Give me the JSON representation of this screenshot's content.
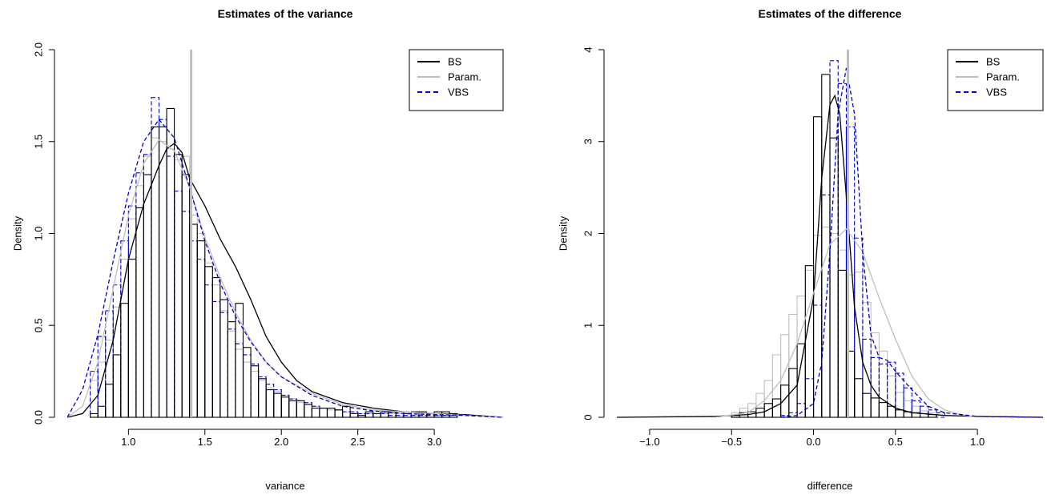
{
  "chart_data": [
    {
      "type": "histogram",
      "title": "Estimates of the variance",
      "xlabel": "variance",
      "ylabel": "Density",
      "xlim": [
        0.6,
        3.45
      ],
      "ylim": [
        0,
        2.0
      ],
      "xticks": [
        1.0,
        1.5,
        2.0,
        2.5,
        3.0
      ],
      "xtick_labels": [
        "1.0",
        "1.5",
        "2.0",
        "2.5",
        "3.0"
      ],
      "yticks": [
        0.0,
        0.5,
        1.0,
        1.5,
        2.0
      ],
      "ytick_labels": [
        "0.0",
        "0.5",
        "1.0",
        "1.5",
        "2.0"
      ],
      "vline": 1.41,
      "vline_color": "#bebebe",
      "legend_position": "top-right",
      "legend": [
        {
          "label": "BS",
          "color": "#000000",
          "dash": "solid"
        },
        {
          "label": "Param.",
          "color": "#bebebe",
          "dash": "solid"
        },
        {
          "label": "VBS",
          "color": "#0000cd",
          "dash": "dashed"
        }
      ],
      "histograms": [
        {
          "name": "BS",
          "color": "#000000",
          "dash": "solid",
          "x0": 0.75,
          "binwidth": 0.05,
          "values": [
            0.02,
            0.06,
            0.18,
            0.34,
            0.62,
            0.86,
            1.14,
            1.32,
            1.58,
            1.58,
            1.68,
            1.43,
            1.32,
            1.05,
            0.96,
            0.82,
            0.76,
            0.64,
            0.52,
            0.62,
            0.38,
            0.28,
            0.21,
            0.15,
            0.13,
            0.11,
            0.09,
            0.09,
            0.07,
            0.05,
            0.05,
            0.05,
            0.04,
            0.06,
            0.02,
            0.01,
            0.03,
            0.02,
            0.03,
            0.03,
            0.03,
            0.02,
            0.03,
            0.03,
            0.02,
            0.03,
            0.03,
            0.02
          ]
        },
        {
          "name": "Param.",
          "color": "#bebebe",
          "dash": "solid",
          "x0": 0.75,
          "binwidth": 0.05,
          "values": [
            0.2,
            0.3,
            0.42,
            0.6,
            0.86,
            1.08,
            1.26,
            1.42,
            1.52,
            1.5,
            1.46,
            1.4,
            1.42,
            1.1,
            1.0,
            0.84,
            0.72,
            0.58,
            0.47,
            0.37,
            0.3,
            0.25,
            0.2,
            0.16,
            0.14,
            0.12,
            0.1,
            0.08,
            0.07,
            0.06,
            0.05,
            0.04,
            0.04,
            0.03,
            0.03,
            0.02,
            0.02,
            0.02,
            0.02,
            0.02,
            0.02,
            0.02,
            0.01,
            0.01,
            0.02,
            0.01,
            0.02,
            0.01
          ]
        },
        {
          "name": "VBS",
          "color": "#0000cd",
          "dash": "dashed",
          "x0": 0.75,
          "binwidth": 0.05,
          "values": [
            0.25,
            0.44,
            0.58,
            0.72,
            0.96,
            1.15,
            1.33,
            1.43,
            1.74,
            1.62,
            1.42,
            1.23,
            1.12,
            0.96,
            0.86,
            0.72,
            0.63,
            0.57,
            0.48,
            0.4,
            0.34,
            0.29,
            0.22,
            0.18,
            0.15,
            0.12,
            0.1,
            0.09,
            0.08,
            0.06,
            0.05,
            0.05,
            0.04,
            0.03,
            0.03,
            0.02,
            0.02,
            0.02,
            0.02,
            0.01,
            0.01,
            0.01,
            0.01,
            0.01,
            0.01,
            0.01,
            0.01,
            0.01
          ]
        }
      ],
      "densities": [
        {
          "name": "BS",
          "color": "#000000",
          "dash": "solid",
          "x": [
            0.6,
            0.7,
            0.8,
            0.9,
            1.0,
            1.1,
            1.2,
            1.25,
            1.3,
            1.35,
            1.4,
            1.5,
            1.6,
            1.7,
            1.8,
            1.9,
            2.0,
            2.1,
            2.2,
            2.4,
            2.6,
            2.8,
            3.0,
            3.2,
            3.45
          ],
          "y": [
            0.0,
            0.02,
            0.12,
            0.42,
            0.86,
            1.16,
            1.37,
            1.46,
            1.49,
            1.44,
            1.3,
            1.15,
            0.97,
            0.82,
            0.64,
            0.44,
            0.3,
            0.2,
            0.14,
            0.08,
            0.05,
            0.03,
            0.02,
            0.015,
            0.0
          ]
        },
        {
          "name": "Param.",
          "color": "#bebebe",
          "dash": "solid",
          "x": [
            0.6,
            0.7,
            0.8,
            0.9,
            1.0,
            1.1,
            1.2,
            1.3,
            1.4,
            1.5,
            1.6,
            1.7,
            1.8,
            1.9,
            2.0,
            2.2,
            2.4,
            2.6,
            2.8,
            3.0,
            3.2,
            3.45
          ],
          "y": [
            0.0,
            0.06,
            0.3,
            0.7,
            1.1,
            1.38,
            1.51,
            1.45,
            1.25,
            0.98,
            0.76,
            0.57,
            0.42,
            0.3,
            0.22,
            0.13,
            0.07,
            0.04,
            0.03,
            0.02,
            0.01,
            0.0
          ]
        },
        {
          "name": "VBS",
          "color": "#0000cd",
          "dash": "dashed",
          "x": [
            0.6,
            0.7,
            0.8,
            0.9,
            1.0,
            1.1,
            1.2,
            1.3,
            1.4,
            1.5,
            1.6,
            1.7,
            1.8,
            1.9,
            2.0,
            2.2,
            2.4,
            2.6,
            2.8,
            3.0,
            3.2,
            3.45
          ],
          "y": [
            0.0,
            0.15,
            0.45,
            0.85,
            1.22,
            1.5,
            1.62,
            1.52,
            1.25,
            0.96,
            0.73,
            0.55,
            0.41,
            0.3,
            0.22,
            0.12,
            0.06,
            0.035,
            0.02,
            0.015,
            0.01,
            0.0
          ]
        }
      ]
    },
    {
      "type": "histogram",
      "title": "Estimates of the difference",
      "xlabel": "difference",
      "ylabel": "Density",
      "xlim": [
        -1.2,
        1.4
      ],
      "ylim": [
        0,
        4.0
      ],
      "xticks": [
        -1.0,
        -0.5,
        0.0,
        0.5,
        1.0
      ],
      "xtick_labels": [
        "−1.0",
        "−0.5",
        "0.0",
        "0.5",
        "1.0"
      ],
      "yticks": [
        0,
        1,
        2,
        3,
        4
      ],
      "ytick_labels": [
        "0",
        "1",
        "2",
        "3",
        "4"
      ],
      "vline": 0.21,
      "vline_color": "#bebebe",
      "legend_position": "top-right",
      "legend": [
        {
          "label": "BS",
          "color": "#000000",
          "dash": "solid"
        },
        {
          "label": "Param.",
          "color": "#bebebe",
          "dash": "solid"
        },
        {
          "label": "VBS",
          "color": "#0000cd",
          "dash": "dashed"
        }
      ],
      "histograms": [
        {
          "name": "BS",
          "color": "#000000",
          "dash": "solid",
          "x0": -0.5,
          "binwidth": 0.05,
          "values": [
            0.02,
            0.05,
            0.06,
            0.1,
            0.15,
            0.2,
            0.35,
            0.53,
            0.8,
            1.65,
            3.27,
            3.73,
            3.04,
            1.6,
            0.72,
            0.42,
            0.26,
            0.21,
            0.16,
            0.12,
            0.08,
            0.06,
            0.05,
            0.04,
            0.03
          ]
        },
        {
          "name": "Param.",
          "color": "#bebebe",
          "dash": "solid",
          "x0": -0.5,
          "binwidth": 0.05,
          "values": [
            0.05,
            0.1,
            0.15,
            0.26,
            0.4,
            0.68,
            0.9,
            1.12,
            1.32,
            1.6,
            1.98,
            2.07,
            2.0,
            1.82,
            1.55,
            1.58,
            1.25,
            0.92,
            0.72,
            0.45,
            0.27,
            0.18,
            0.12,
            0.07,
            0.05
          ]
        },
        {
          "name": "VBS",
          "color": "#0000cd",
          "dash": "dashed",
          "x0": -0.2,
          "binwidth": 0.05,
          "values": [
            0.02,
            0.05,
            0.15,
            0.42,
            1.22,
            2.42,
            3.88,
            3.63,
            3.16,
            1.95,
            0.85,
            0.65,
            0.58,
            0.6,
            0.48,
            0.32,
            0.18,
            0.12,
            0.08,
            0.05
          ]
        }
      ],
      "densities": [
        {
          "name": "BS",
          "color": "#000000",
          "dash": "solid",
          "x": [
            -1.2,
            -0.6,
            -0.4,
            -0.3,
            -0.2,
            -0.1,
            0.0,
            0.05,
            0.1,
            0.13,
            0.16,
            0.2,
            0.25,
            0.3,
            0.35,
            0.4,
            0.5,
            0.6,
            0.8,
            1.0,
            1.4
          ],
          "y": [
            0.0,
            0.01,
            0.03,
            0.06,
            0.15,
            0.35,
            1.3,
            2.6,
            3.4,
            3.5,
            3.3,
            2.4,
            1.2,
            0.6,
            0.35,
            0.22,
            0.1,
            0.05,
            0.02,
            0.01,
            0.0
          ]
        },
        {
          "name": "Param.",
          "color": "#bebebe",
          "dash": "solid",
          "x": [
            -0.6,
            -0.4,
            -0.3,
            -0.2,
            -0.1,
            0.0,
            0.1,
            0.2,
            0.3,
            0.4,
            0.5,
            0.6,
            0.7,
            0.8,
            0.9,
            1.0
          ],
          "y": [
            0.0,
            0.05,
            0.18,
            0.4,
            0.8,
            1.35,
            1.88,
            2.05,
            1.8,
            1.3,
            0.85,
            0.45,
            0.2,
            0.08,
            0.03,
            0.0
          ]
        },
        {
          "name": "VBS",
          "color": "#0000cd",
          "dash": "dashed",
          "x": [
            -0.2,
            -0.1,
            0.0,
            0.05,
            0.1,
            0.15,
            0.2,
            0.25,
            0.3,
            0.35,
            0.4,
            0.45,
            0.5,
            0.6,
            0.7,
            0.8,
            1.0,
            1.4
          ],
          "y": [
            0.0,
            0.02,
            0.15,
            0.6,
            1.8,
            3.3,
            3.8,
            3.3,
            1.8,
            0.9,
            0.65,
            0.62,
            0.5,
            0.3,
            0.12,
            0.05,
            0.01,
            0.0
          ]
        }
      ]
    }
  ]
}
